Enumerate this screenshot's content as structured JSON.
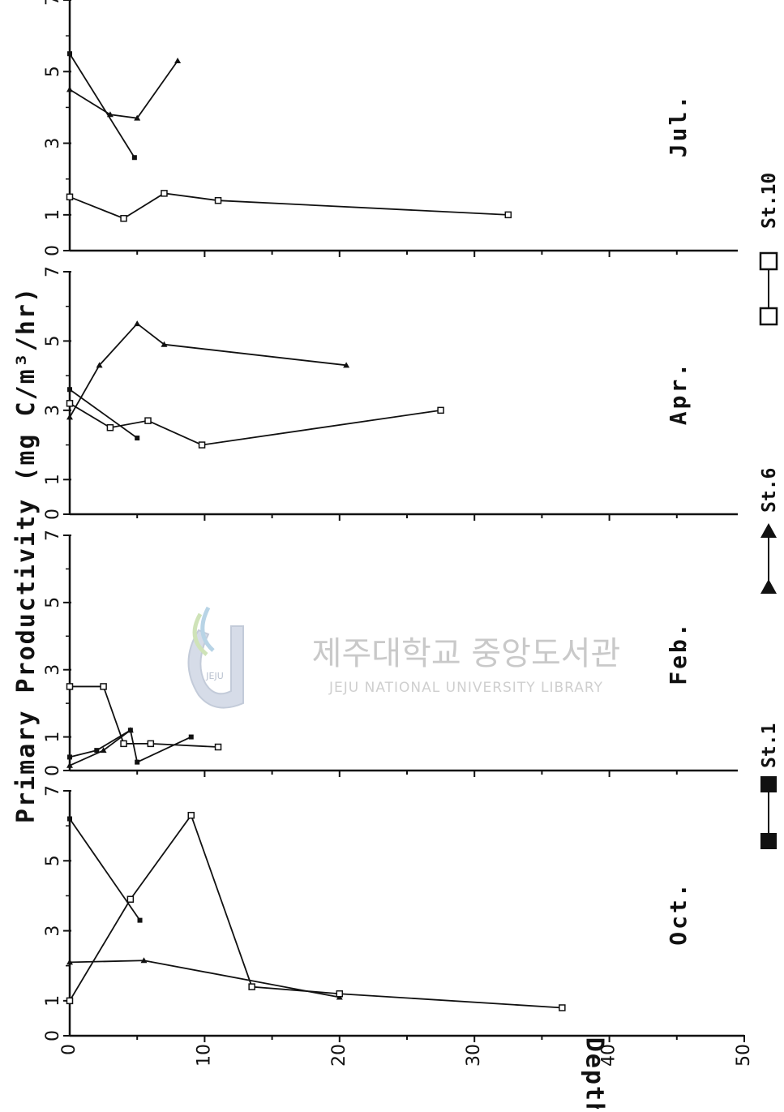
{
  "chart_data": {
    "type": "line",
    "ylabel": "Primary Productivity (mg C/m³/hr)",
    "xlabel": "Depth(m)",
    "xlim": [
      0,
      50
    ],
    "ylim": [
      0,
      7
    ],
    "x_ticks": [
      "0",
      "10",
      "20",
      "30",
      "40",
      "50"
    ],
    "y_ticks": [
      "0",
      "1",
      "3",
      "5",
      "7"
    ],
    "legend": [
      {
        "name": "St.1",
        "marker": "filled-square"
      },
      {
        "name": "St.6",
        "marker": "filled-triangle"
      },
      {
        "name": "St.10",
        "marker": "open-square"
      }
    ],
    "panels": [
      {
        "month": "Jul.",
        "series": [
          {
            "name": "St.1",
            "marker": "filled-square",
            "points": [
              [
                0,
                5.5
              ],
              [
                4.8,
                2.6
              ]
            ]
          },
          {
            "name": "St.6",
            "marker": "filled-triangle",
            "points": [
              [
                0,
                4.5
              ],
              [
                3.0,
                3.8
              ],
              [
                5.0,
                3.7
              ],
              [
                8.0,
                5.3
              ]
            ]
          },
          {
            "name": "St.10",
            "marker": "open-square",
            "points": [
              [
                0,
                1.5
              ],
              [
                4.0,
                0.9
              ],
              [
                7.0,
                1.6
              ],
              [
                11.0,
                1.4
              ],
              [
                32.5,
                1.0
              ]
            ]
          }
        ]
      },
      {
        "month": "Apr.",
        "series": [
          {
            "name": "St.1",
            "marker": "filled-square",
            "points": [
              [
                0,
                3.6
              ],
              [
                5.0,
                2.2
              ]
            ]
          },
          {
            "name": "St.6",
            "marker": "filled-triangle",
            "points": [
              [
                0,
                2.8
              ],
              [
                2.2,
                4.3
              ],
              [
                5.0,
                5.5
              ],
              [
                7.0,
                4.9
              ],
              [
                20.5,
                4.3
              ]
            ]
          },
          {
            "name": "St.10",
            "marker": "open-square",
            "points": [
              [
                0,
                3.2
              ],
              [
                3.0,
                2.5
              ],
              [
                5.8,
                2.7
              ],
              [
                9.8,
                2.0
              ],
              [
                27.5,
                3.0
              ]
            ]
          }
        ]
      },
      {
        "month": "Feb.",
        "series": [
          {
            "name": "St.1",
            "marker": "filled-square",
            "points": [
              [
                0,
                0.4
              ],
              [
                2.0,
                0.6
              ],
              [
                4.5,
                1.2
              ],
              [
                5.0,
                0.25
              ],
              [
                9.0,
                1.0
              ]
            ]
          },
          {
            "name": "St.6",
            "marker": "filled-triangle",
            "points": [
              [
                0,
                0.15
              ],
              [
                2.5,
                0.6
              ],
              [
                4.5,
                1.2
              ]
            ]
          },
          {
            "name": "St.10",
            "marker": "open-square",
            "points": [
              [
                0,
                2.5
              ],
              [
                2.5,
                2.5
              ],
              [
                4.0,
                0.8
              ],
              [
                6.0,
                0.8
              ],
              [
                11.0,
                0.7
              ]
            ]
          }
        ]
      },
      {
        "month": "Oct.",
        "series": [
          {
            "name": "St.1",
            "marker": "filled-square",
            "points": [
              [
                0,
                6.2
              ],
              [
                5.2,
                3.3
              ]
            ]
          },
          {
            "name": "St.6",
            "marker": "filled-triangle",
            "points": [
              [
                0,
                2.1
              ],
              [
                5.5,
                2.15
              ],
              [
                20.0,
                1.1
              ]
            ]
          },
          {
            "name": "St.10",
            "marker": "open-square",
            "points": [
              [
                0,
                1.0
              ],
              [
                4.5,
                3.9
              ],
              [
                9.0,
                6.3
              ],
              [
                13.5,
                1.4
              ],
              [
                20.0,
                1.2
              ],
              [
                36.5,
                0.8
              ]
            ]
          }
        ]
      }
    ]
  },
  "watermark": {
    "title": "제주대학교 중앙도서관",
    "subtitle": "JEJU NATIONAL UNIVERSITY LIBRARY",
    "logo_text": "JEJU"
  }
}
